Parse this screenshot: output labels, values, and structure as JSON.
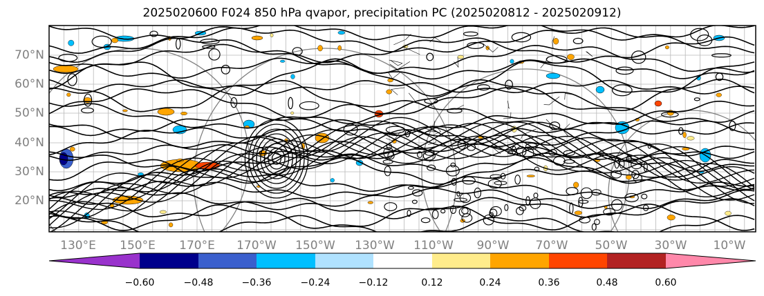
{
  "title": "2025020600 F024 850 hPa qvapor, precipitation PC (2025020812 - 2025020912)",
  "map": {
    "lat_labels": [
      "70°N",
      "60°N",
      "50°N",
      "40°N",
      "30°N",
      "20°N"
    ],
    "lon_labels": [
      "130°E",
      "150°E",
      "170°E",
      "170°W",
      "150°W",
      "130°W",
      "110°W",
      "90°W",
      "70°W",
      "50°W",
      "30°W",
      "10°W"
    ],
    "colors": {
      "contour": "#000000",
      "gridline": "#808080",
      "border": "#000000"
    }
  },
  "colorbar": {
    "colors": [
      "#9932cc",
      "#00008b",
      "#3a5fcd",
      "#00bfff",
      "#b0e2ff",
      "#ffffff",
      "#ffec8b",
      "#ffa500",
      "#ff4500",
      "#b22222",
      "#ff88aa"
    ],
    "tick_labels": [
      "−0.60",
      "−0.48",
      "−0.36",
      "−0.24",
      "−0.12",
      "0.12",
      "0.24",
      "0.36",
      "0.48",
      "0.60"
    ]
  }
}
